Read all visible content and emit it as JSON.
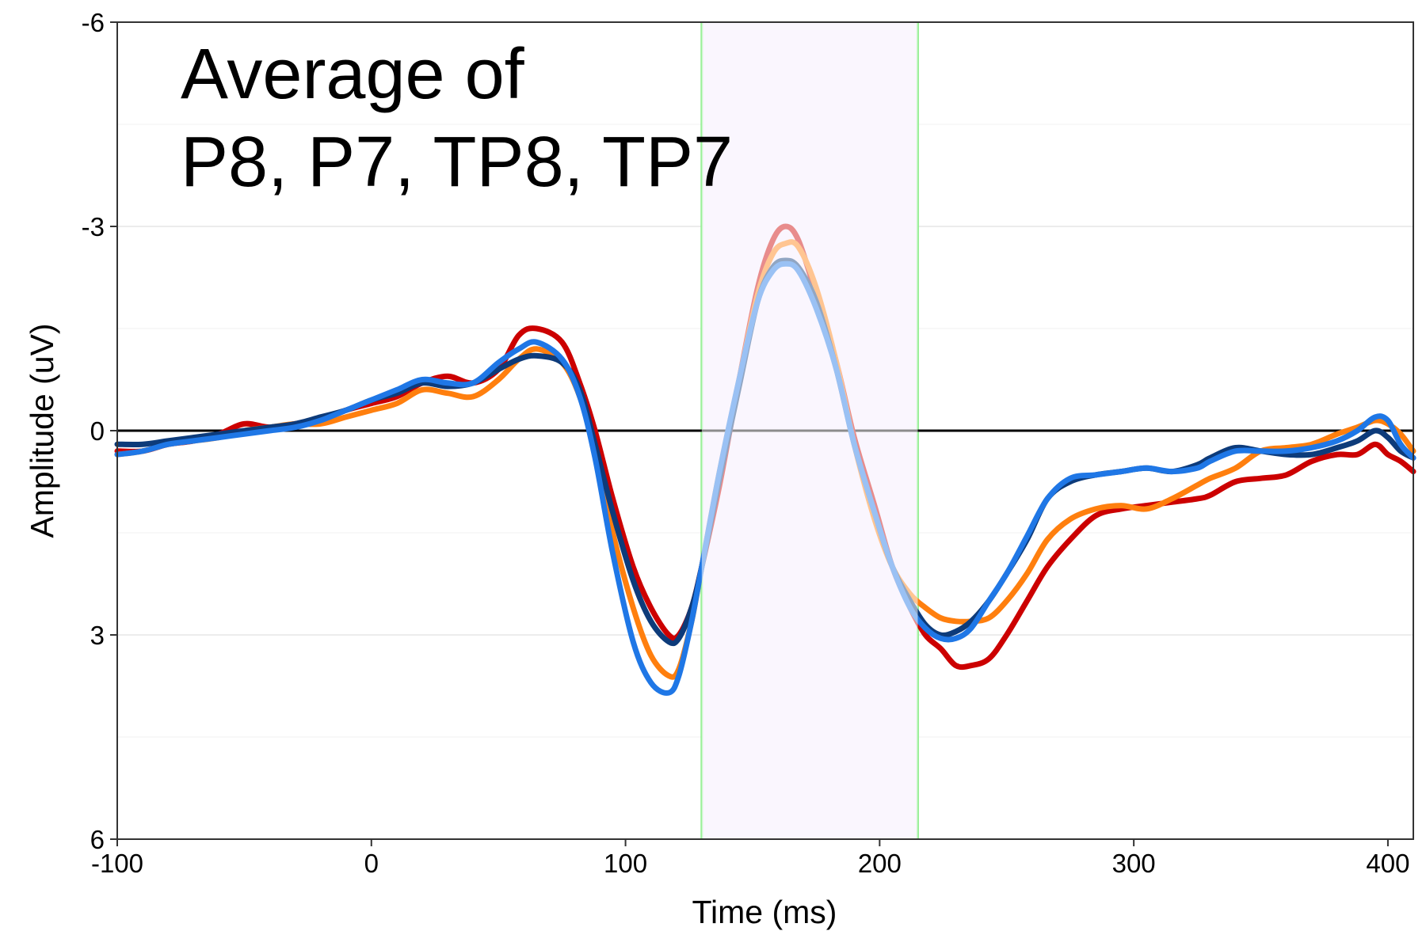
{
  "chart_data": {
    "type": "line",
    "title_lines": [
      "Average of",
      "P8, P7, TP8, TP7"
    ],
    "xlabel": "Time (ms)",
    "ylabel": "Amplitude (uV)",
    "xlim": [
      -100,
      410
    ],
    "ylim": [
      -6,
      6
    ],
    "y_reversed": true,
    "x_ticks": [
      -100,
      0,
      100,
      200,
      300,
      400
    ],
    "y_ticks": [
      -6,
      -3,
      0,
      3,
      6
    ],
    "x_tick_labels": [
      "-100",
      "0",
      "100",
      "200",
      "300",
      "400"
    ],
    "y_tick_labels": [
      "-6",
      "-3",
      "0",
      "3",
      "6"
    ],
    "grid": true,
    "background": "#ffffff",
    "zero_line_color": "#000000",
    "highlight_window": {
      "x_start": 130,
      "x_end": 215,
      "fill_color": "#f3ebfc",
      "edge_color": "#90ee90"
    },
    "window_highlight_opacity": 0.55,
    "series": [
      {
        "color": "#cc0000",
        "points": [
          [
            -100,
            0.3
          ],
          [
            -90,
            0.3
          ],
          [
            -80,
            0.2
          ],
          [
            -70,
            0.15
          ],
          [
            -60,
            0.05
          ],
          [
            -50,
            -0.1
          ],
          [
            -40,
            -0.05
          ],
          [
            -30,
            -0.1
          ],
          [
            -20,
            -0.15
          ],
          [
            -10,
            -0.3
          ],
          [
            0,
            -0.4
          ],
          [
            10,
            -0.5
          ],
          [
            20,
            -0.7
          ],
          [
            30,
            -0.8
          ],
          [
            40,
            -0.7
          ],
          [
            50,
            -0.9
          ],
          [
            58,
            -1.4
          ],
          [
            65,
            -1.5
          ],
          [
            75,
            -1.3
          ],
          [
            82,
            -0.7
          ],
          [
            88,
            0.0
          ],
          [
            95,
            1.0
          ],
          [
            103,
            2.0
          ],
          [
            110,
            2.6
          ],
          [
            117,
            3.0
          ],
          [
            121,
            3.0
          ],
          [
            126,
            2.6
          ],
          [
            130,
            2.0
          ],
          [
            137,
            0.8
          ],
          [
            145,
            -0.8
          ],
          [
            152,
            -2.1
          ],
          [
            158,
            -2.8
          ],
          [
            163,
            -3.0
          ],
          [
            168,
            -2.8
          ],
          [
            175,
            -2.0
          ],
          [
            183,
            -1.0
          ],
          [
            190,
            0.1
          ],
          [
            198,
            1.1
          ],
          [
            205,
            2.0
          ],
          [
            212,
            2.6
          ],
          [
            218,
            3.0
          ],
          [
            224,
            3.2
          ],
          [
            230,
            3.45
          ],
          [
            236,
            3.45
          ],
          [
            243,
            3.35
          ],
          [
            250,
            3.0
          ],
          [
            258,
            2.5
          ],
          [
            266,
            2.0
          ],
          [
            275,
            1.6
          ],
          [
            285,
            1.25
          ],
          [
            295,
            1.15
          ],
          [
            305,
            1.1
          ],
          [
            315,
            1.05
          ],
          [
            325,
            1.0
          ],
          [
            330,
            0.95
          ],
          [
            340,
            0.75
          ],
          [
            350,
            0.7
          ],
          [
            360,
            0.65
          ],
          [
            370,
            0.45
          ],
          [
            380,
            0.35
          ],
          [
            388,
            0.35
          ],
          [
            395,
            0.2
          ],
          [
            400,
            0.35
          ],
          [
            405,
            0.45
          ],
          [
            410,
            0.6
          ]
        ]
      },
      {
        "color": "#ff7f0e",
        "points": [
          [
            -100,
            0.35
          ],
          [
            -90,
            0.3
          ],
          [
            -80,
            0.2
          ],
          [
            -70,
            0.15
          ],
          [
            -60,
            0.1
          ],
          [
            -50,
            0.0
          ],
          [
            -40,
            -0.05
          ],
          [
            -30,
            -0.1
          ],
          [
            -20,
            -0.1
          ],
          [
            -10,
            -0.2
          ],
          [
            0,
            -0.3
          ],
          [
            10,
            -0.4
          ],
          [
            20,
            -0.6
          ],
          [
            30,
            -0.55
          ],
          [
            40,
            -0.5
          ],
          [
            50,
            -0.75
          ],
          [
            58,
            -1.05
          ],
          [
            65,
            -1.2
          ],
          [
            75,
            -1.0
          ],
          [
            82,
            -0.5
          ],
          [
            88,
            0.3
          ],
          [
            95,
            1.5
          ],
          [
            103,
            2.6
          ],
          [
            110,
            3.3
          ],
          [
            117,
            3.6
          ],
          [
            121,
            3.5
          ],
          [
            126,
            2.8
          ],
          [
            130,
            2.0
          ],
          [
            137,
            0.6
          ],
          [
            145,
            -0.8
          ],
          [
            152,
            -2.0
          ],
          [
            158,
            -2.6
          ],
          [
            163,
            -2.75
          ],
          [
            168,
            -2.7
          ],
          [
            175,
            -2.1
          ],
          [
            183,
            -1.0
          ],
          [
            190,
            0.2
          ],
          [
            198,
            1.3
          ],
          [
            205,
            2.0
          ],
          [
            212,
            2.4
          ],
          [
            218,
            2.6
          ],
          [
            224,
            2.75
          ],
          [
            230,
            2.8
          ],
          [
            236,
            2.8
          ],
          [
            243,
            2.75
          ],
          [
            250,
            2.5
          ],
          [
            258,
            2.1
          ],
          [
            266,
            1.6
          ],
          [
            275,
            1.3
          ],
          [
            285,
            1.15
          ],
          [
            295,
            1.1
          ],
          [
            305,
            1.15
          ],
          [
            315,
            1.0
          ],
          [
            325,
            0.8
          ],
          [
            330,
            0.7
          ],
          [
            340,
            0.55
          ],
          [
            350,
            0.3
          ],
          [
            360,
            0.25
          ],
          [
            370,
            0.2
          ],
          [
            380,
            0.05
          ],
          [
            388,
            -0.05
          ],
          [
            395,
            -0.15
          ],
          [
            400,
            -0.1
          ],
          [
            405,
            0.05
          ],
          [
            410,
            0.3
          ]
        ]
      },
      {
        "color": "#0d3b7a",
        "points": [
          [
            -100,
            0.2
          ],
          [
            -90,
            0.2
          ],
          [
            -80,
            0.15
          ],
          [
            -70,
            0.1
          ],
          [
            -60,
            0.05
          ],
          [
            -50,
            0.0
          ],
          [
            -40,
            -0.05
          ],
          [
            -30,
            -0.1
          ],
          [
            -20,
            -0.2
          ],
          [
            -10,
            -0.3
          ],
          [
            0,
            -0.45
          ],
          [
            10,
            -0.55
          ],
          [
            20,
            -0.7
          ],
          [
            30,
            -0.65
          ],
          [
            40,
            -0.7
          ],
          [
            50,
            -0.9
          ],
          [
            58,
            -1.05
          ],
          [
            65,
            -1.1
          ],
          [
            75,
            -1.0
          ],
          [
            82,
            -0.6
          ],
          [
            88,
            0.2
          ],
          [
            95,
            1.2
          ],
          [
            103,
            2.2
          ],
          [
            110,
            2.8
          ],
          [
            117,
            3.1
          ],
          [
            121,
            3.05
          ],
          [
            126,
            2.6
          ],
          [
            130,
            2.0
          ],
          [
            137,
            0.7
          ],
          [
            145,
            -0.7
          ],
          [
            152,
            -1.9
          ],
          [
            158,
            -2.4
          ],
          [
            163,
            -2.5
          ],
          [
            168,
            -2.4
          ],
          [
            175,
            -1.9
          ],
          [
            183,
            -0.9
          ],
          [
            190,
            0.2
          ],
          [
            198,
            1.2
          ],
          [
            205,
            2.0
          ],
          [
            212,
            2.5
          ],
          [
            218,
            2.85
          ],
          [
            224,
            3.0
          ],
          [
            230,
            2.95
          ],
          [
            236,
            2.8
          ],
          [
            243,
            2.5
          ],
          [
            250,
            2.1
          ],
          [
            258,
            1.6
          ],
          [
            266,
            1.0
          ],
          [
            275,
            0.75
          ],
          [
            285,
            0.65
          ],
          [
            295,
            0.6
          ],
          [
            305,
            0.55
          ],
          [
            315,
            0.6
          ],
          [
            325,
            0.5
          ],
          [
            330,
            0.4
          ],
          [
            340,
            0.25
          ],
          [
            350,
            0.3
          ],
          [
            360,
            0.35
          ],
          [
            370,
            0.35
          ],
          [
            380,
            0.25
          ],
          [
            388,
            0.15
          ],
          [
            395,
            0.0
          ],
          [
            400,
            0.1
          ],
          [
            405,
            0.3
          ],
          [
            410,
            0.4
          ]
        ]
      },
      {
        "color": "#1f77e6",
        "points": [
          [
            -100,
            0.35
          ],
          [
            -90,
            0.3
          ],
          [
            -80,
            0.2
          ],
          [
            -70,
            0.15
          ],
          [
            -60,
            0.1
          ],
          [
            -50,
            0.05
          ],
          [
            -40,
            0.0
          ],
          [
            -30,
            -0.05
          ],
          [
            -20,
            -0.15
          ],
          [
            -10,
            -0.3
          ],
          [
            0,
            -0.45
          ],
          [
            10,
            -0.6
          ],
          [
            20,
            -0.75
          ],
          [
            30,
            -0.7
          ],
          [
            40,
            -0.7
          ],
          [
            50,
            -1.0
          ],
          [
            58,
            -1.2
          ],
          [
            65,
            -1.3
          ],
          [
            75,
            -1.05
          ],
          [
            82,
            -0.5
          ],
          [
            88,
            0.4
          ],
          [
            95,
            1.8
          ],
          [
            103,
            3.1
          ],
          [
            110,
            3.7
          ],
          [
            117,
            3.85
          ],
          [
            121,
            3.6
          ],
          [
            126,
            2.8
          ],
          [
            130,
            2.0
          ],
          [
            137,
            0.6
          ],
          [
            145,
            -0.8
          ],
          [
            152,
            -1.9
          ],
          [
            158,
            -2.35
          ],
          [
            163,
            -2.45
          ],
          [
            168,
            -2.35
          ],
          [
            175,
            -1.8
          ],
          [
            183,
            -0.9
          ],
          [
            190,
            0.2
          ],
          [
            198,
            1.2
          ],
          [
            205,
            2.0
          ],
          [
            212,
            2.6
          ],
          [
            218,
            2.9
          ],
          [
            224,
            3.05
          ],
          [
            230,
            3.05
          ],
          [
            236,
            2.9
          ],
          [
            243,
            2.5
          ],
          [
            250,
            2.1
          ],
          [
            258,
            1.55
          ],
          [
            266,
            1.0
          ],
          [
            275,
            0.7
          ],
          [
            285,
            0.65
          ],
          [
            295,
            0.6
          ],
          [
            305,
            0.55
          ],
          [
            315,
            0.6
          ],
          [
            325,
            0.55
          ],
          [
            330,
            0.45
          ],
          [
            340,
            0.3
          ],
          [
            350,
            0.3
          ],
          [
            360,
            0.3
          ],
          [
            370,
            0.25
          ],
          [
            380,
            0.15
          ],
          [
            388,
            0.0
          ],
          [
            395,
            -0.2
          ],
          [
            400,
            -0.15
          ],
          [
            405,
            0.2
          ],
          [
            410,
            0.4
          ]
        ]
      }
    ]
  }
}
